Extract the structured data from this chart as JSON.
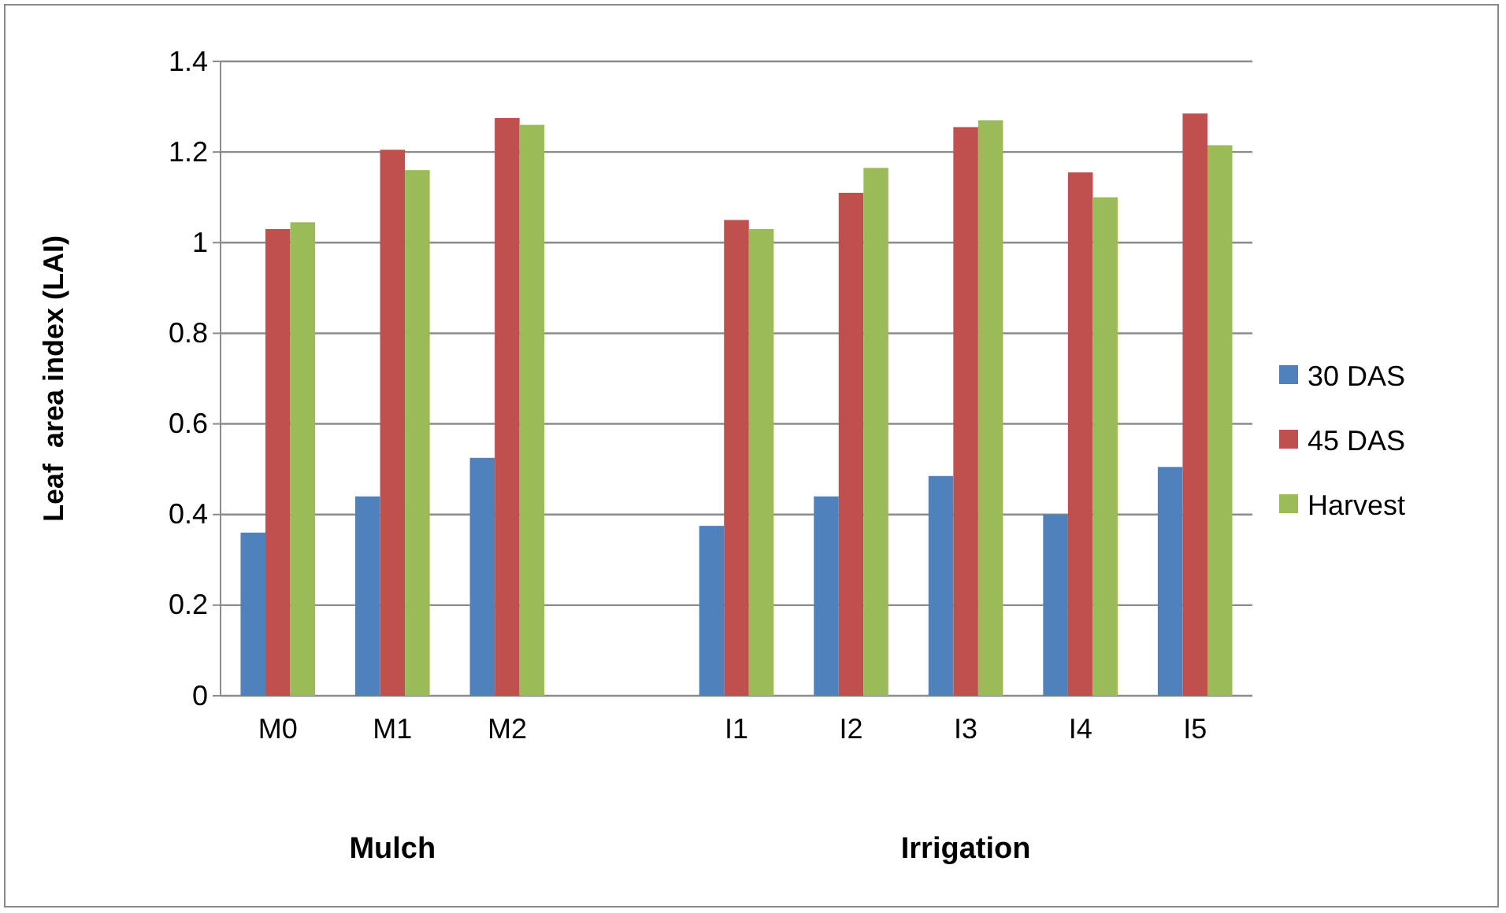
{
  "chart_data": {
    "type": "bar",
    "ylabel": "Leaf  area index (LAI)",
    "categories": [
      "M0",
      "M1",
      "M2",
      null,
      "I1",
      "I2",
      "I3",
      "I4",
      "I5"
    ],
    "series": [
      {
        "name": "30 DAS",
        "color": "#4f81bd",
        "values": [
          0.36,
          0.44,
          0.525,
          null,
          0.375,
          0.44,
          0.485,
          0.4,
          0.505
        ]
      },
      {
        "name": "45 DAS",
        "color": "#c0504d",
        "values": [
          1.03,
          1.205,
          1.275,
          null,
          1.05,
          1.11,
          1.255,
          1.155,
          1.285
        ]
      },
      {
        "name": "Harvest",
        "color": "#9bbb59",
        "values": [
          1.045,
          1.16,
          1.26,
          null,
          1.03,
          1.165,
          1.27,
          1.1,
          1.215
        ]
      }
    ],
    "annotations": [
      "Mulch",
      "Irrigation"
    ],
    "ylim": [
      0,
      1.4
    ],
    "yticks": [
      0,
      0.2,
      0.4,
      0.6,
      0.8,
      1,
      1.2,
      1.4
    ],
    "grid": "y",
    "legend": "right"
  }
}
